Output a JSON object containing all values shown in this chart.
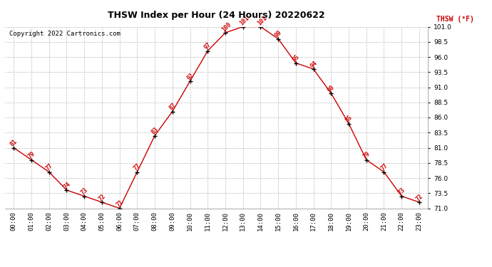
{
  "title": "THSW Index per Hour (24 Hours) 20220622",
  "copyright": "Copyright 2022 Cartronics.com",
  "legend_label": "THSW (°F)",
  "hours": [
    0,
    1,
    2,
    3,
    4,
    5,
    6,
    7,
    8,
    9,
    10,
    11,
    12,
    13,
    14,
    15,
    16,
    17,
    18,
    19,
    20,
    21,
    22,
    23
  ],
  "values": [
    81,
    79,
    77,
    74,
    73,
    72,
    71,
    77,
    83,
    87,
    92,
    97,
    100,
    101,
    101,
    99,
    95,
    94,
    90,
    85,
    79,
    77,
    73,
    72
  ],
  "xlabels": [
    "00:00",
    "01:00",
    "02:00",
    "03:00",
    "04:00",
    "05:00",
    "06:00",
    "07:00",
    "08:00",
    "09:00",
    "10:00",
    "11:00",
    "12:00",
    "13:00",
    "14:00",
    "15:00",
    "16:00",
    "17:00",
    "18:00",
    "19:00",
    "20:00",
    "21:00",
    "22:00",
    "23:00"
  ],
  "ylim": [
    71.0,
    101.0
  ],
  "yticks": [
    71.0,
    73.5,
    76.0,
    78.5,
    81.0,
    83.5,
    86.0,
    88.5,
    91.0,
    93.5,
    96.0,
    98.5,
    101.0
  ],
  "line_color": "#cc0000",
  "marker_color": "#000000",
  "label_color": "#cc0000",
  "title_color": "#000000",
  "copyright_color": "#000000",
  "bg_color": "#ffffff",
  "grid_color": "#bbbbbb",
  "title_fontsize": 9,
  "copyright_fontsize": 6.5,
  "label_fontsize": 6,
  "axis_fontsize": 6.5,
  "legend_fontsize": 7
}
